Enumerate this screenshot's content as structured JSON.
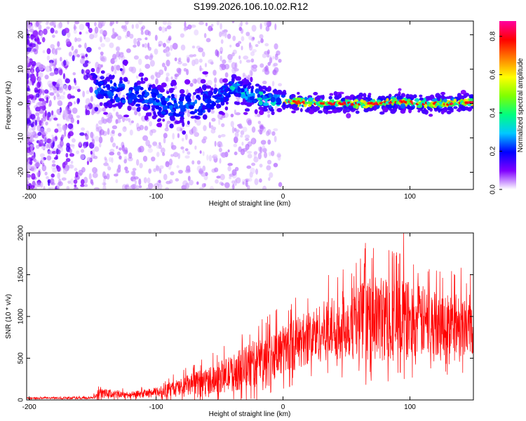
{
  "title": "S199.2026.106.10.02.R12",
  "chart_data": [
    {
      "type": "heatmap",
      "name": "spectrogram",
      "title": "S199.2026.106.10.02.R12",
      "xlabel": "Height of straight line (km)",
      "ylabel": "Frequency (Hz)",
      "xlim": [
        -202,
        150
      ],
      "ylim": [
        -25,
        24
      ],
      "x_ticks": [
        -200,
        -100,
        0,
        100
      ],
      "y_ticks": [
        -20,
        -10,
        0,
        10,
        20
      ],
      "colorbar": {
        "label": "Normalized spectral amplitude",
        "range": [
          0.0,
          0.88
        ],
        "ticks": [
          0.0,
          0.2,
          0.4,
          0.6,
          0.8
        ],
        "colors": [
          "#ffffff",
          "#8000ff",
          "#0000ff",
          "#00c8ff",
          "#00ff80",
          "#80ff00",
          "#ffff00",
          "#ff8000",
          "#ff0000",
          "#ff00a0"
        ]
      },
      "ridge_frequency": [
        {
          "x": -145,
          "y": 4
        },
        {
          "x": -130,
          "y": 4
        },
        {
          "x": -110,
          "y": 2
        },
        {
          "x": -95,
          "y": 0
        },
        {
          "x": -80,
          "y": -1
        },
        {
          "x": -65,
          "y": 0
        },
        {
          "x": -50,
          "y": 2
        },
        {
          "x": -38,
          "y": 5
        },
        {
          "x": -30,
          "y": 3
        },
        {
          "x": -20,
          "y": 2
        },
        {
          "x": -10,
          "y": 1
        },
        {
          "x": 0,
          "y": 1
        },
        {
          "x": 10,
          "y": 0.5
        },
        {
          "x": 30,
          "y": 0
        },
        {
          "x": 50,
          "y": 0
        },
        {
          "x": 70,
          "y": 0
        },
        {
          "x": 90,
          "y": 0.5
        },
        {
          "x": 110,
          "y": 0
        },
        {
          "x": 130,
          "y": 0
        },
        {
          "x": 150,
          "y": 0.5
        }
      ]
    },
    {
      "type": "line",
      "name": "snr",
      "xlabel": "Height of straight line (km)",
      "ylabel": "SNR (10 * v/v)",
      "xlim": [
        -202,
        150
      ],
      "ylim": [
        0,
        2000
      ],
      "x_ticks": [
        -200,
        -100,
        0,
        100
      ],
      "y_ticks": [
        0,
        500,
        1000,
        1500,
        2000
      ],
      "color": "#ff0000",
      "envelope": [
        {
          "x": -202,
          "mean": 20,
          "spread": 10
        },
        {
          "x": -150,
          "mean": 25,
          "spread": 15
        },
        {
          "x": -145,
          "mean": 80,
          "spread": 60
        },
        {
          "x": -120,
          "mean": 60,
          "spread": 40
        },
        {
          "x": -100,
          "mean": 90,
          "spread": 60
        },
        {
          "x": -80,
          "mean": 150,
          "spread": 120
        },
        {
          "x": -60,
          "mean": 230,
          "spread": 160
        },
        {
          "x": -40,
          "mean": 320,
          "spread": 220
        },
        {
          "x": -20,
          "mean": 450,
          "spread": 300
        },
        {
          "x": 0,
          "mean": 600,
          "spread": 300
        },
        {
          "x": 20,
          "mean": 750,
          "spread": 330
        },
        {
          "x": 40,
          "mean": 870,
          "spread": 380
        },
        {
          "x": 60,
          "mean": 950,
          "spread": 470
        },
        {
          "x": 80,
          "mean": 980,
          "spread": 530
        },
        {
          "x": 100,
          "mean": 950,
          "spread": 480
        },
        {
          "x": 120,
          "mean": 920,
          "spread": 400
        },
        {
          "x": 150,
          "mean": 900,
          "spread": 370
        }
      ],
      "peaks": [
        {
          "x": 65,
          "y": 1880
        },
        {
          "x": 70,
          "y": 1700
        },
        {
          "x": 95,
          "y": 2000
        },
        {
          "x": 92,
          "y": 1750
        }
      ]
    }
  ]
}
